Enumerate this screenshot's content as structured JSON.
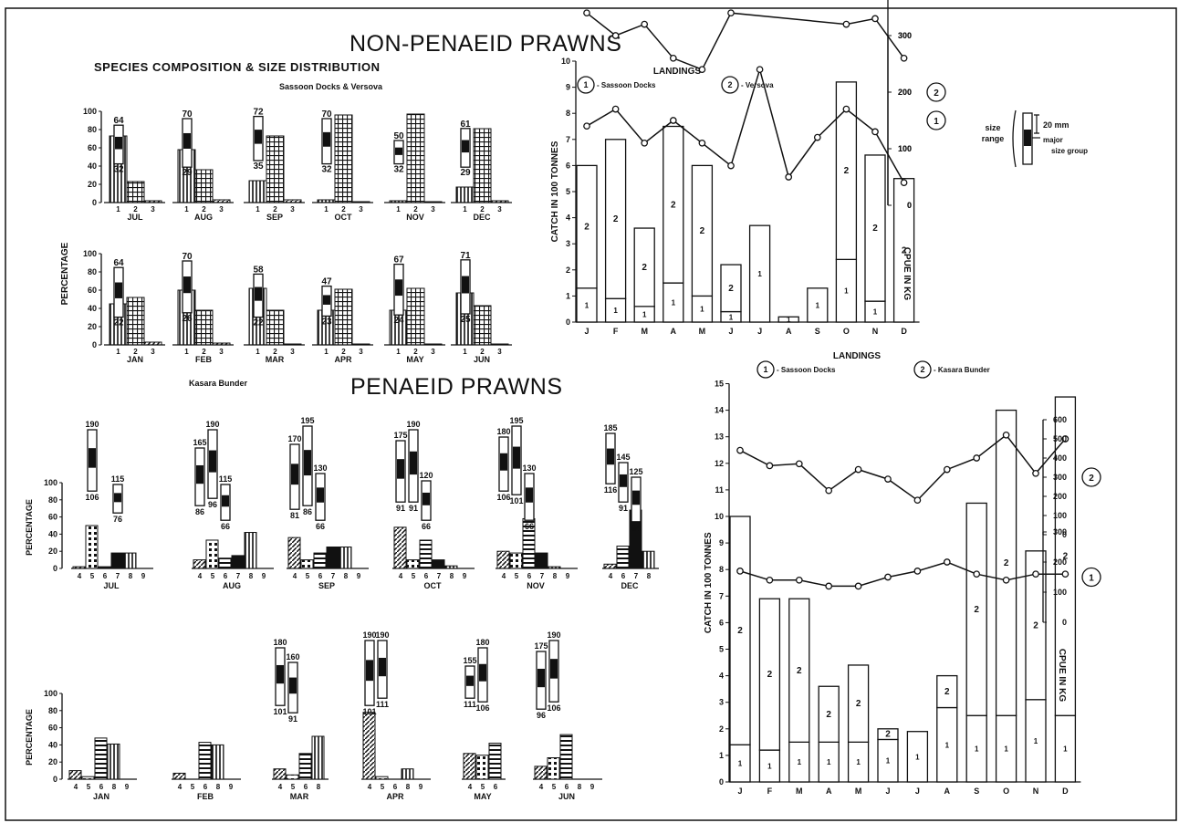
{
  "titles": {
    "non_penaeid": "NON-PENAEID PRAWNS",
    "species_comp": "SPECIES COMPOSITION & SIZE DISTRIBUTION",
    "sassoon_versova": "Sassoon Docks & Versova",
    "penaeid": "PENAEID PRAWNS",
    "kasara_bunder": "Kasara Bunder"
  },
  "legend": {
    "size_range": "size range",
    "mm20": "20 mm",
    "major_size_group": "major size group"
  },
  "colors": {
    "ink": "#111111",
    "background": "#ffffff"
  },
  "chart_data": [
    {
      "id": "non_penaeid_composition_sassoon",
      "type": "bar",
      "ylabel": "PERCENTAGE",
      "ylim": [
        0,
        100
      ],
      "yticks": [
        0,
        20,
        40,
        60,
        80,
        100
      ],
      "categories": [
        "1",
        "2",
        "3"
      ],
      "panels": [
        {
          "month": "JUL",
          "values": [
            73,
            23,
            2
          ],
          "size_max": 64,
          "size_min": 32
        },
        {
          "month": "AUG",
          "values": [
            58,
            36,
            3
          ],
          "size_max": 70,
          "size_min": 29
        },
        {
          "month": "SEP",
          "values": [
            24,
            73,
            3
          ],
          "size_max": 72,
          "size_min": 35
        },
        {
          "month": "OCT",
          "values": [
            3,
            96,
            1
          ],
          "size_max": 70,
          "size_min": 32
        },
        {
          "month": "NOV",
          "values": [
            2,
            97,
            1
          ],
          "size_max": 50,
          "size_min": 32
        },
        {
          "month": "DEC",
          "values": [
            17,
            81,
            2
          ],
          "size_max": 61,
          "size_min": 29
        },
        {
          "month": "JAN",
          "values": [
            45,
            52,
            3
          ],
          "size_max": 64,
          "size_min": 22
        },
        {
          "month": "FEB",
          "values": [
            60,
            38,
            2
          ],
          "size_max": 70,
          "size_min": 26
        },
        {
          "month": "MAR",
          "values": [
            62,
            38,
            0
          ],
          "size_max": 58,
          "size_min": 22
        },
        {
          "month": "APR",
          "values": [
            38,
            61,
            1
          ],
          "size_max": 47,
          "size_min": 23
        },
        {
          "month": "MAY",
          "values": [
            38,
            62,
            0
          ],
          "size_max": 67,
          "size_min": 24
        },
        {
          "month": "JUN",
          "values": [
            57,
            43,
            0
          ],
          "size_max": 71,
          "size_min": 25
        }
      ]
    },
    {
      "id": "non_penaeid_landings",
      "type": "bar",
      "title": "LANDINGS",
      "legend": [
        "1 - Sassoon Docks",
        "2 - Versova"
      ],
      "categories": [
        "J",
        "F",
        "M",
        "A",
        "M",
        "J",
        "J",
        "A",
        "S",
        "O",
        "N",
        "D"
      ],
      "ylabel": "CATCH IN 100 TONNES",
      "ylim": [
        0,
        10
      ],
      "y2label": "CPUE IN KG",
      "series": [
        {
          "name": "1",
          "values": [
            1.3,
            0.9,
            0.6,
            1.5,
            1.0,
            0.4,
            3.7,
            0.2,
            1.3,
            2.4,
            0.8,
            0
          ]
        },
        {
          "name": "2",
          "values": [
            4.7,
            6.1,
            3.0,
            6.0,
            5.0,
            1.8,
            0,
            0,
            0,
            6.8,
            5.6,
            5.5
          ]
        }
      ],
      "cpue_series": [
        {
          "name": "1",
          "values": [
            140,
            170,
            110,
            150,
            110,
            70,
            240,
            50,
            120,
            170,
            130,
            40
          ]
        },
        {
          "name": "2",
          "values": [
            340,
            300,
            320,
            260,
            240,
            340,
            null,
            null,
            null,
            320,
            330,
            260
          ]
        }
      ]
    },
    {
      "id": "penaeid_composition_kasara",
      "type": "bar",
      "ylabel": "PERCENTAGE",
      "ylim": [
        0,
        100
      ],
      "yticks": [
        0,
        20,
        40,
        60,
        80,
        100
      ],
      "panels": [
        {
          "month": "JUL",
          "categories": [
            "4",
            "5",
            "6",
            "7",
            "8",
            "9"
          ],
          "values": [
            2,
            50,
            2,
            18,
            18,
            0
          ],
          "size_bars": [
            {
              "cat": "5",
              "max": 190,
              "min": 106
            },
            {
              "cat": "7",
              "max": 115,
              "min": 76
            }
          ]
        },
        {
          "month": "AUG",
          "categories": [
            "4",
            "5",
            "6",
            "7",
            "8",
            "9"
          ],
          "values": [
            10,
            33,
            12,
            15,
            42,
            0
          ],
          "size_bars": [
            {
              "cat": "4",
              "max": 165,
              "min": 86
            },
            {
              "cat": "5",
              "max": 190,
              "min": 96
            },
            {
              "cat": "6",
              "max": 115,
              "min": 66
            }
          ]
        },
        {
          "month": "SEP",
          "categories": [
            "4",
            "5",
            "6",
            "7",
            "8",
            "9"
          ],
          "values": [
            36,
            10,
            18,
            25,
            25,
            0
          ],
          "size_bars": [
            {
              "cat": "4",
              "max": 170,
              "min": 81
            },
            {
              "cat": "5",
              "max": 195,
              "min": 86
            },
            {
              "cat": "6",
              "max": 130,
              "min": 66
            }
          ]
        },
        {
          "month": "OCT",
          "categories": [
            "4",
            "5",
            "6",
            "7",
            "8",
            "9"
          ],
          "values": [
            48,
            10,
            33,
            10,
            3,
            0
          ],
          "size_bars": [
            {
              "cat": "4",
              "max": 175,
              "min": 91
            },
            {
              "cat": "5",
              "max": 190,
              "min": 91
            },
            {
              "cat": "6",
              "max": 120,
              "min": 66
            }
          ]
        },
        {
          "month": "NOV",
          "categories": [
            "4",
            "5",
            "6",
            "7",
            "8",
            "9"
          ],
          "values": [
            20,
            18,
            58,
            18,
            2,
            0
          ],
          "size_bars": [
            {
              "cat": "4",
              "max": 180,
              "min": 106
            },
            {
              "cat": "5",
              "max": 195,
              "min": 101
            },
            {
              "cat": "6",
              "max": 130,
              "min": 66
            }
          ]
        },
        {
          "month": "DEC",
          "categories": [
            "4",
            "6",
            "7",
            "8"
          ],
          "values": [
            5,
            26,
            68,
            20
          ],
          "size_bars": [
            {
              "cat": "4",
              "max": 185,
              "min": 116
            },
            {
              "cat": "6",
              "max": 145,
              "min": 91
            },
            {
              "cat": "7",
              "max": 125,
              "min": 64
            }
          ]
        },
        {
          "month": "JAN",
          "categories": [
            "4",
            "5",
            "6",
            "8",
            "9"
          ],
          "values": [
            10,
            3,
            48,
            41,
            0
          ],
          "size_bars": []
        },
        {
          "month": "FEB",
          "categories": [
            "4",
            "5",
            "6",
            "8",
            "9"
          ],
          "values": [
            7,
            0,
            43,
            40,
            0
          ],
          "size_bars": []
        },
        {
          "month": "MAR",
          "categories": [
            "4",
            "5",
            "6",
            "8"
          ],
          "values": [
            12,
            5,
            30,
            50
          ],
          "size_bars": [
            {
              "cat": "4",
              "max": 180,
              "min": 101
            },
            {
              "cat": "5",
              "max": 160,
              "min": 91
            }
          ]
        },
        {
          "month": "APR",
          "categories": [
            "4",
            "5",
            "6",
            "8",
            "9"
          ],
          "values": [
            78,
            3,
            0,
            12,
            0
          ],
          "size_bars": [
            {
              "cat": "4",
              "max": 190,
              "min": 101
            },
            {
              "cat": "5",
              "max": 190,
              "min": 111
            }
          ]
        },
        {
          "month": "MAY",
          "categories": [
            "4",
            "5",
            "6"
          ],
          "values": [
            30,
            28,
            42
          ],
          "size_bars": [
            {
              "cat": "4",
              "max": 155,
              "min": 111
            },
            {
              "cat": "5",
              "max": 180,
              "min": 106
            }
          ]
        },
        {
          "month": "JUN",
          "categories": [
            "4",
            "5",
            "6",
            "8",
            "9"
          ],
          "values": [
            15,
            25,
            52,
            0,
            0
          ],
          "size_bars": [
            {
              "cat": "4",
              "max": 175,
              "min": 96
            },
            {
              "cat": "5",
              "max": 190,
              "min": 106
            }
          ]
        }
      ]
    },
    {
      "id": "penaeid_landings",
      "type": "bar",
      "title": "LANDINGS",
      "legend": [
        "1 - Sassoon Docks",
        "2 - Kasara Bunder"
      ],
      "categories": [
        "J",
        "F",
        "M",
        "A",
        "M",
        "J",
        "J",
        "A",
        "S",
        "O",
        "N",
        "D"
      ],
      "ylabel": "CATCH IN 100 TONNES",
      "ylim": [
        0,
        15
      ],
      "y2label": "CPUE IN KG",
      "series": [
        {
          "name": "1",
          "values": [
            1.4,
            1.2,
            1.5,
            1.5,
            1.5,
            1.6,
            1.9,
            2.8,
            2.5,
            2.5,
            3.1,
            2.5
          ]
        },
        {
          "name": "2",
          "values": [
            8.6,
            5.7,
            5.4,
            2.1,
            2.9,
            0.4,
            0,
            1.2,
            8.0,
            11.5,
            5.6,
            12.0
          ]
        }
      ],
      "cpue_series": [
        {
          "name": "1",
          "values": [
            170,
            140,
            140,
            120,
            120,
            150,
            170,
            200,
            160,
            140,
            160,
            160
          ]
        },
        {
          "name": "2",
          "values": [
            440,
            360,
            370,
            230,
            340,
            290,
            180,
            340,
            400,
            520,
            320,
            500
          ]
        }
      ]
    }
  ]
}
